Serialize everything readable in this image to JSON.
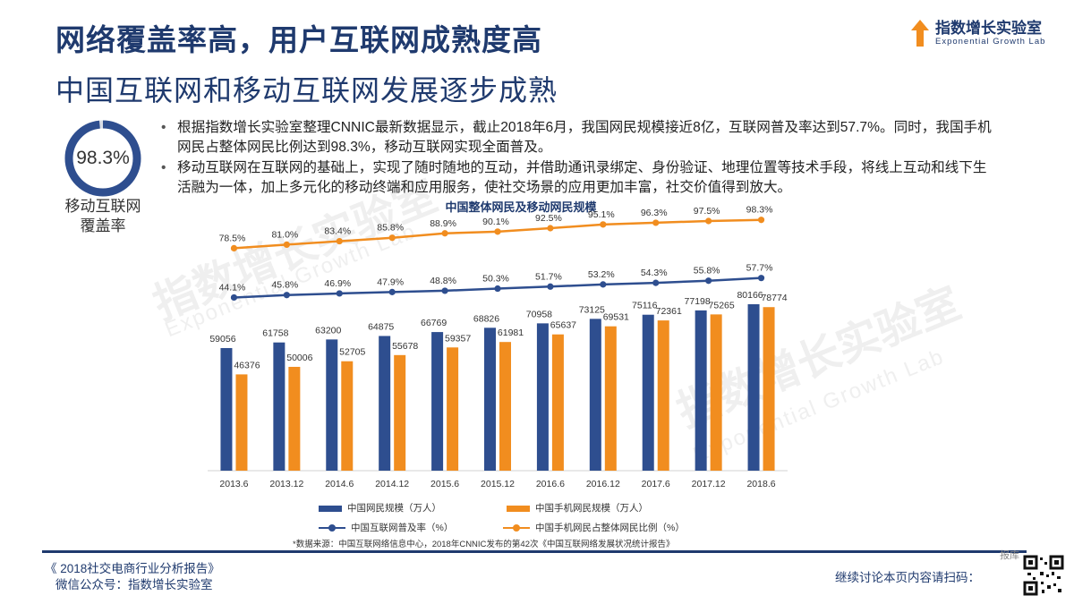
{
  "header": {
    "title": "网络覆盖率高，用户互联网成熟度高",
    "subtitle": "中国互联网和移动互联网发展逐步成熟"
  },
  "logo": {
    "name": "指数增长实验室",
    "english": "Exponential Growth Lab",
    "icon": "arrow-up-icon"
  },
  "ring": {
    "value_text": "98.3%",
    "percent": 98.3,
    "label_line1": "移动互联网",
    "label_line2": "覆盖率"
  },
  "bullets": [
    "根据指数增长实验室整理CNNIC最新数据显示，截止2018年6月，我国网民规模接近8亿，互联网普及率达到57.7%。同时，我国手机网民占整体网民比例达到98.3%，移动互联网实现全面普及。",
    "移动互联网在互联网的基础上，实现了随时随地的互动，并借助通讯录绑定、身份验证、地理位置等技术手段，将线上互动和线下生活融为一体，加上多元化的移动终端和应用服务，使社交场景的应用更加丰富，社交价值得到放大。"
  ],
  "chart_data": {
    "type": "bar",
    "title": "中国整体网民及移动网民规模",
    "categories": [
      "2013.6",
      "2013.12",
      "2014.6",
      "2014.12",
      "2015.6",
      "2015.12",
      "2016.6",
      "2016.12",
      "2017.6",
      "2017.12",
      "2018.6"
    ],
    "series": [
      {
        "name": "中国网民规模（万人）",
        "type": "bar",
        "color": "#2e4e8f",
        "values": [
          59056,
          61758,
          63200,
          64875,
          66769,
          68826,
          70958,
          73125,
          75116,
          77198,
          80166
        ]
      },
      {
        "name": "中国手机网民规模（万人）",
        "type": "bar",
        "color": "#f18d1f",
        "values": [
          46376,
          50006,
          52705,
          55678,
          59357,
          61981,
          65637,
          69531,
          72361,
          75265,
          78774
        ]
      },
      {
        "name": "中国互联网普及率（%）",
        "type": "line",
        "color": "#2e4e8f",
        "values": [
          44.1,
          45.8,
          46.9,
          47.9,
          48.8,
          50.3,
          51.7,
          53.2,
          54.3,
          55.8,
          57.7
        ],
        "labels": [
          "44.1%",
          "45.8%",
          "46.9%",
          "47.9%",
          "48.8%",
          "50.3%",
          "51.7%",
          "53.2%",
          "54.3%",
          "55.8%",
          "57.7%"
        ]
      },
      {
        "name": "中国手机网民占整体网民比例（%）",
        "type": "line",
        "color": "#f18d1f",
        "values": [
          78.5,
          81.0,
          83.4,
          85.8,
          88.9,
          90.1,
          92.5,
          95.1,
          96.3,
          97.5,
          98.3
        ],
        "labels": [
          "78.5%",
          "81.0%",
          "83.4%",
          "85.8%",
          "88.9%",
          "90.1%",
          "92.5%",
          "95.1%",
          "96.3%",
          "97.5%",
          "98.3%"
        ]
      }
    ],
    "legend": [
      "中国网民规模（万人）",
      "中国手机网民规模（万人）",
      "中国互联网普及率（%）",
      "中国手机网民占整体网民比例（%）"
    ],
    "legend_position": "bottom",
    "grid": false
  },
  "source": "*数据来源：中国互联网络信息中心，2018年CNNIC发布的第42次《中国互联网络发展状况统计报告》",
  "footer": {
    "report": "《 2018社交电商行业分析报告》",
    "wechat": "微信公众号：指数增长实验室",
    "cta": "继续讨论本页内容请扫码：",
    "badge": "报库"
  },
  "watermark": {
    "text": "指数增长实验室",
    "english": "Exponential Growth Lab"
  },
  "colors": {
    "navy": "#2e4e8f",
    "orange": "#f18d1f",
    "title": "#1f3a6e"
  }
}
